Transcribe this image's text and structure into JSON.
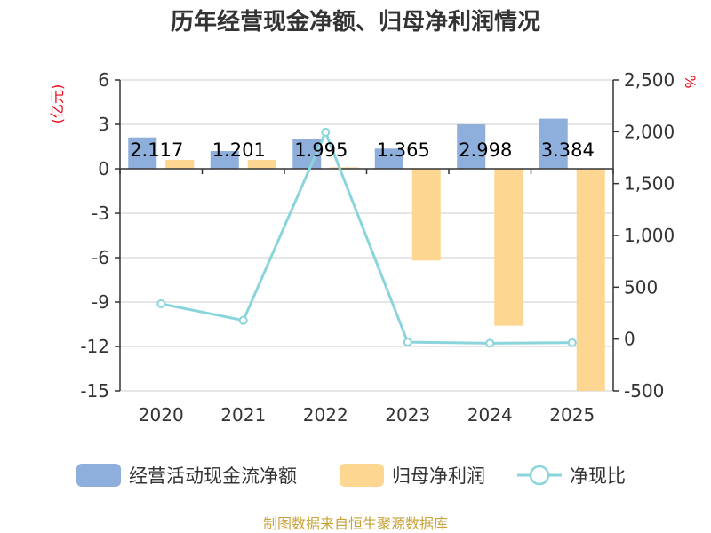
{
  "colors": {
    "bar1": "#8eaedb",
    "bar2": "#fdd691",
    "line": "#8ad5dc",
    "unit": "#e60012",
    "source": "#c8a23a",
    "grid": "#cccccc",
    "axis": "#333333"
  },
  "chart_data": {
    "type": "bar",
    "title": "历年经营现金净额、归母净利润情况",
    "left_unit": "(亿元)",
    "right_unit": "%",
    "categories": [
      "2020",
      "2021",
      "2022",
      "2023",
      "2024",
      "2025"
    ],
    "y_left": {
      "min": -15,
      "max": 6,
      "ticks": [
        6,
        3,
        0,
        -3,
        -6,
        -9,
        -12,
        -15
      ]
    },
    "y_right": {
      "min": -500,
      "max": 2500,
      "ticks": [
        "2,500",
        "2,000",
        "1,500",
        "1,000",
        "500",
        "0",
        "-500"
      ],
      "tick_values": [
        2500,
        2000,
        1500,
        1000,
        500,
        0,
        -500
      ]
    },
    "grid": true,
    "legend_position": "bottom",
    "series": [
      {
        "name": "经营活动现金流净额",
        "type": "bar",
        "axis": "left",
        "values": [
          2.117,
          1.201,
          1.995,
          1.365,
          2.998,
          3.384
        ],
        "labels": [
          "2.117",
          "1.201",
          "1.995",
          "1.365",
          "2.998",
          "3.384"
        ]
      },
      {
        "name": "归母净利润",
        "type": "bar",
        "axis": "left",
        "values": [
          0.6,
          0.6,
          0.1,
          -6.2,
          -10.6,
          -15
        ]
      },
      {
        "name": "净现比",
        "type": "line",
        "axis": "right",
        "values": [
          340,
          180,
          1995,
          -30,
          -40,
          -35
        ]
      }
    ]
  },
  "source": "制图数据来自恒生聚源数据库"
}
